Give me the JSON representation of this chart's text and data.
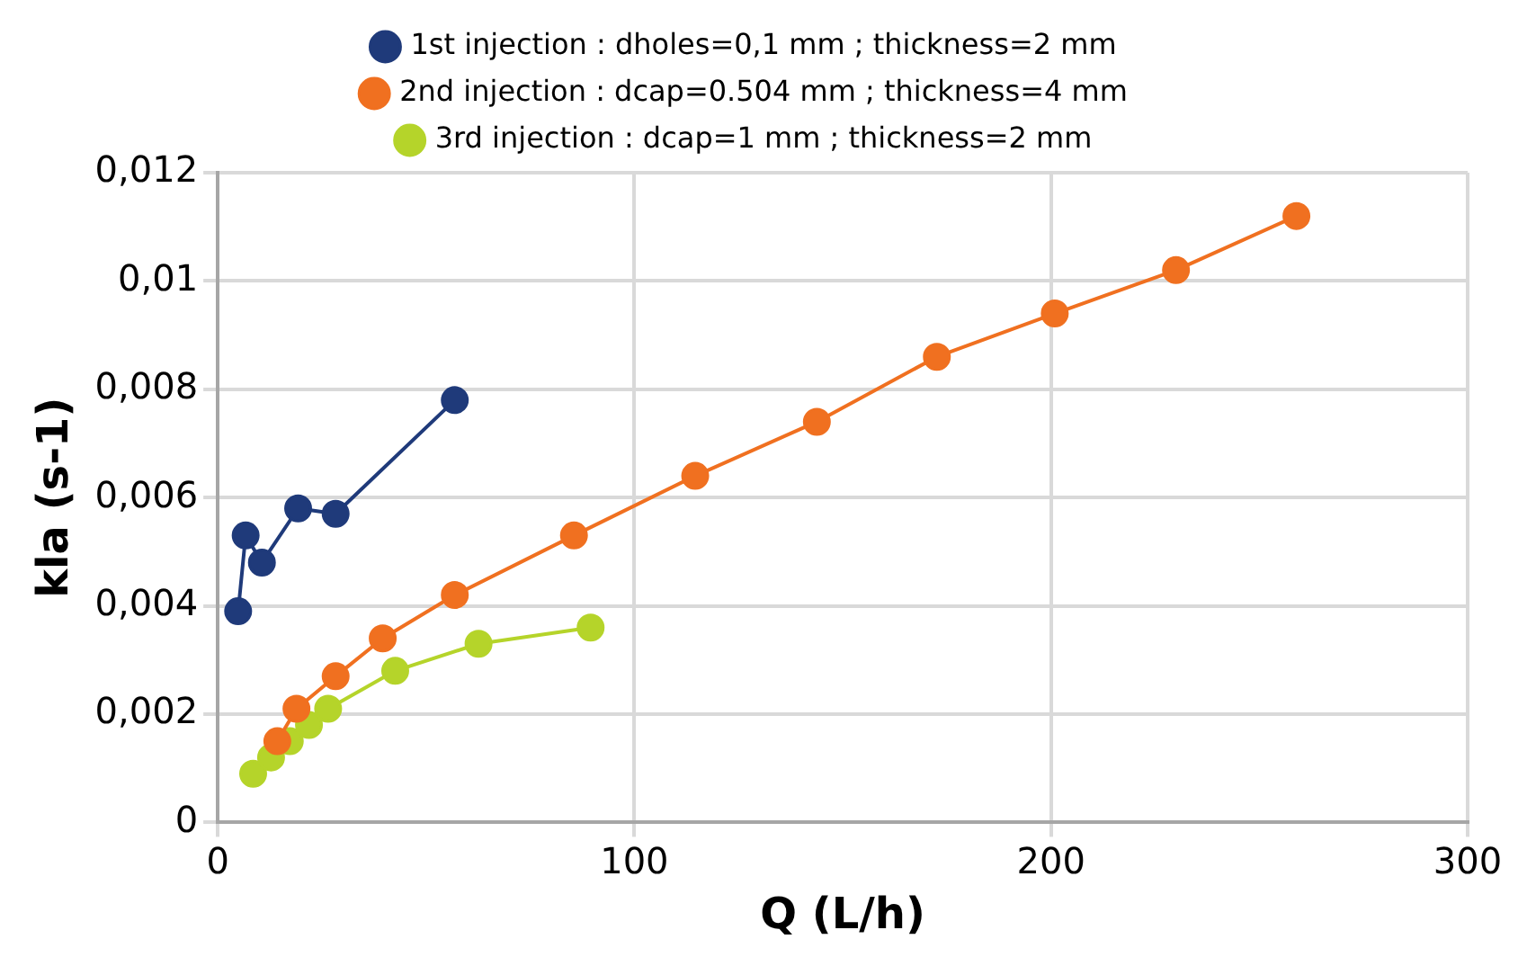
{
  "chart_data": {
    "type": "line",
    "xlabel": "Q (L/h)",
    "ylabel": "kla (s-1)",
    "xlim": [
      0,
      300
    ],
    "xticks": [
      0,
      100,
      200,
      300
    ],
    "ylim": [
      0,
      0.012
    ],
    "yticks": [
      0,
      {
        "value": 0.002,
        "label": "0,002"
      },
      {
        "value": 0.004,
        "label": "0,004"
      },
      {
        "value": 0.006,
        "label": "0,006"
      },
      {
        "value": 0.008,
        "label": "0,008"
      },
      {
        "value": 0.01,
        "label": "0,01"
      },
      {
        "value": 0.012,
        "label": "0,012"
      }
    ],
    "grid": true,
    "legend": "top",
    "marker": "circle",
    "line_style": "solid",
    "series": [
      {
        "name": "1st injection : dholes=0,1 mm ; thickness=2 mm",
        "color": "#1f3a7a",
        "x": [
          4.9,
          6.7,
          10.6,
          19.3,
          28.3,
          56.9
        ],
        "values": [
          0.0039,
          0.0053,
          0.0048,
          0.0058,
          0.0057,
          0.0078
        ]
      },
      {
        "name": "2nd injection : dcap=0.504 mm ; thickness=4 mm",
        "color": "#f07020",
        "x": [
          14.3,
          18.9,
          28.3,
          39.6,
          56.9,
          85.5,
          114.6,
          143.8,
          172.6,
          200.9,
          230,
          258.9
        ],
        "values": [
          0.0015,
          0.0021,
          0.0027,
          0.0034,
          0.0042,
          0.0053,
          0.0064,
          0.0074,
          0.0086,
          0.0094,
          0.0102,
          0.0112
        ]
      },
      {
        "name": "3rd injection : dcap=1 mm ; thickness=2 mm",
        "color": "#b5d42a",
        "x": [
          8.5,
          12.8,
          17.3,
          21.9,
          26.5,
          42.6,
          62.6,
          89.5
        ],
        "values": [
          0.0009,
          0.0012,
          0.0015,
          0.0018,
          0.0021,
          0.0028,
          0.0033,
          0.0036
        ]
      }
    ]
  }
}
